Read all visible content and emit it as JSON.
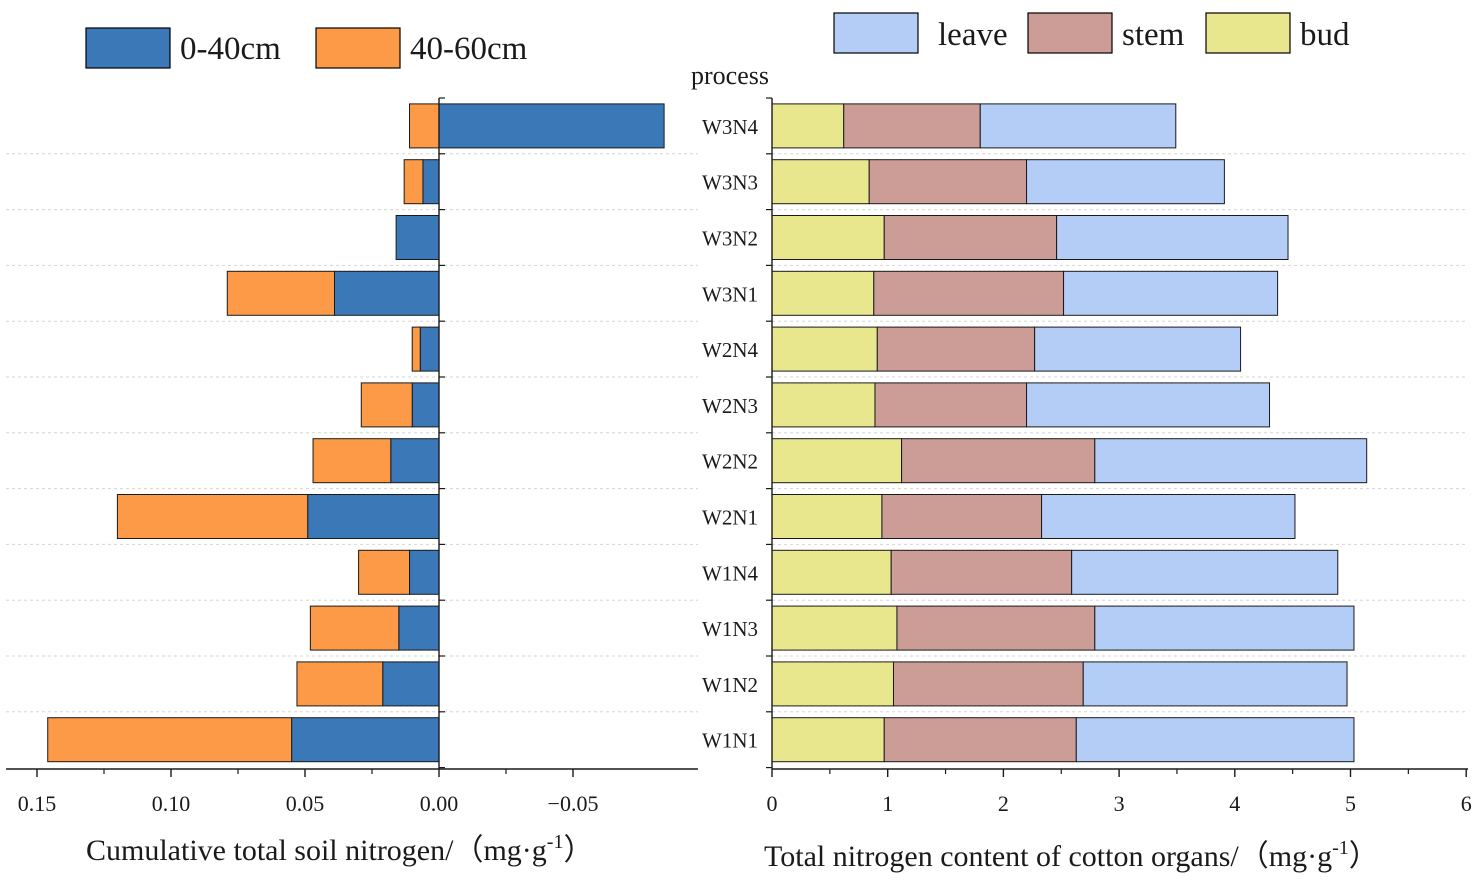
{
  "chart_data": [
    {
      "type": "bar",
      "orientation": "horizontal",
      "stacked": true,
      "xaxis_reversed": true,
      "title": "",
      "xlabel": "Cumulative total soil nitrogen/（mg·g",
      "xlabel_sup": "-1",
      "xlabel_end": "）",
      "xlim": [
        0.155,
        -0.095
      ],
      "xticks": [
        0.15,
        0.1,
        0.05,
        0.0,
        -0.05
      ],
      "xtick_labels": [
        "0.15",
        "0.10",
        "0.05",
        "0.00",
        "−0.05"
      ],
      "categories": [
        "W1N1",
        "W1N2",
        "W1N3",
        "W1N4",
        "W2N1",
        "W2N2",
        "W2N3",
        "W2N4",
        "W3N1",
        "W3N2",
        "W3N3",
        "W3N4"
      ],
      "series": [
        {
          "name": "0-40cm",
          "color": "#3b78b8",
          "values": [
            0.055,
            0.021,
            0.015,
            0.011,
            0.049,
            0.018,
            0.01,
            0.007,
            0.039,
            0.016,
            0.006,
            -0.084
          ]
        },
        {
          "name": "40-60cm",
          "color": "#fd9a47",
          "values": [
            0.091,
            0.032,
            0.033,
            0.019,
            0.071,
            0.029,
            0.019,
            0.003,
            0.04,
            0.0,
            0.007,
            0.011
          ]
        }
      ],
      "legend": {
        "position": "top",
        "entries": [
          "0-40cm",
          "40-60cm"
        ]
      }
    },
    {
      "type": "bar",
      "orientation": "horizontal",
      "stacked": true,
      "title": "",
      "ylabel": "process",
      "xlabel": "Total nitrogen content of cotton organs/（mg·g",
      "xlabel_sup": "-1",
      "xlabel_end": "）",
      "xlim": [
        0,
        6
      ],
      "xticks": [
        0,
        1,
        2,
        3,
        4,
        5,
        6
      ],
      "xtick_labels": [
        "0",
        "1",
        "2",
        "3",
        "4",
        "5",
        "6"
      ],
      "categories": [
        "W1N1",
        "W1N2",
        "W1N3",
        "W1N4",
        "W2N1",
        "W2N2",
        "W2N3",
        "W2N4",
        "W3N1",
        "W3N2",
        "W3N3",
        "W3N4"
      ],
      "series": [
        {
          "name": "bud",
          "color": "#e8e78e",
          "values": [
            0.97,
            1.05,
            1.08,
            1.03,
            0.95,
            1.12,
            0.89,
            0.91,
            0.88,
            0.97,
            0.84,
            0.62
          ]
        },
        {
          "name": "stem",
          "color": "#cc9c96",
          "values": [
            1.66,
            1.64,
            1.71,
            1.56,
            1.38,
            1.67,
            1.31,
            1.36,
            1.64,
            1.49,
            1.36,
            1.18
          ]
        },
        {
          "name": "leave",
          "color": "#b4cdf6",
          "values": [
            2.4,
            2.28,
            2.24,
            2.3,
            2.19,
            2.35,
            2.1,
            1.78,
            1.85,
            2.0,
            1.71,
            1.69
          ]
        }
      ],
      "legend": {
        "position": "top",
        "entries": [
          "leave",
          "stem",
          "bud"
        ]
      }
    }
  ]
}
